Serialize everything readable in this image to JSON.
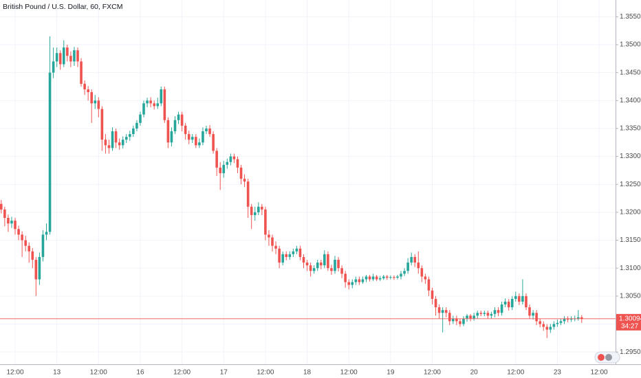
{
  "chart_data": {
    "type": "candlestick",
    "title": "British Pound / U.S. Dollar, 60, FXCM",
    "categories": [
      null,
      null,
      null,
      null,
      "12:00",
      null,
      null,
      null,
      null,
      null,
      null,
      null,
      null,
      null,
      null,
      null,
      "13",
      null,
      null,
      null,
      null,
      null,
      null,
      null,
      null,
      null,
      null,
      null,
      "12:00",
      null,
      null,
      null,
      null,
      null,
      null,
      null,
      null,
      null,
      null,
      null,
      "16",
      null,
      null,
      null,
      null,
      null,
      null,
      null,
      null,
      null,
      null,
      null,
      "12:00",
      null,
      null,
      null,
      null,
      null,
      null,
      null,
      null,
      null,
      null,
      null,
      "17",
      null,
      null,
      null,
      null,
      null,
      null,
      null,
      null,
      null,
      null,
      null,
      "12:00",
      null,
      null,
      null,
      null,
      null,
      null,
      null,
      null,
      null,
      null,
      null,
      "18",
      null,
      null,
      null,
      null,
      null,
      null,
      null,
      null,
      null,
      null,
      null,
      "12:00",
      null,
      null,
      null,
      null,
      null,
      null,
      null,
      null,
      null,
      null,
      null,
      "19",
      null,
      null,
      null,
      null,
      null,
      null,
      null,
      null,
      null,
      null,
      null,
      "12:00",
      null,
      null,
      null,
      null,
      null,
      null,
      null,
      null,
      null,
      null,
      null,
      "20",
      null,
      null,
      null,
      null,
      null,
      null,
      null,
      null,
      null,
      null,
      null,
      "12:00",
      null,
      null,
      null,
      null,
      null,
      null,
      null,
      null,
      null,
      null,
      null,
      "23",
      null,
      null,
      null,
      null,
      null,
      null,
      null,
      null,
      null,
      null,
      null,
      "12:00",
      null,
      null,
      null,
      null
    ],
    "open": [
      1.3215,
      1.3205,
      1.319,
      1.318,
      1.3185,
      1.317,
      1.316,
      1.315,
      1.314,
      1.313,
      1.3115,
      1.308,
      1.312,
      1.316,
      1.3165,
      1.345,
      1.347,
      1.3485,
      1.3465,
      1.3495,
      1.348,
      1.347,
      1.349,
      1.347,
      1.343,
      1.342,
      1.3415,
      1.3395,
      1.34,
      1.3385,
      1.333,
      1.332,
      1.3315,
      1.3345,
      1.3325,
      1.332,
      1.333,
      1.3335,
      1.334,
      1.335,
      1.336,
      1.3375,
      1.3395,
      1.34,
      1.3395,
      1.339,
      1.3395,
      1.342,
      1.3365,
      1.3325,
      1.3345,
      1.3365,
      1.3375,
      1.3355,
      1.334,
      1.333,
      1.3335,
      1.332,
      1.3325,
      1.3345,
      1.335,
      1.334,
      1.331,
      1.328,
      1.327,
      1.3285,
      1.329,
      1.33,
      1.3295,
      1.328,
      1.326,
      1.3255,
      1.321,
      1.3195,
      1.32,
      1.321,
      1.3205,
      1.316,
      1.3155,
      1.314,
      1.3135,
      1.311,
      1.3125,
      1.312,
      1.3125,
      1.313,
      1.3135,
      1.312,
      1.311,
      1.3105,
      1.3095,
      1.31,
      1.311,
      1.3105,
      1.3125,
      1.31,
      1.3095,
      1.3115,
      1.31,
      1.309,
      1.3075,
      1.307,
      1.3075,
      1.308,
      1.3075,
      1.308,
      1.3085,
      1.308,
      1.3085,
      1.308,
      1.3082,
      1.3085,
      1.3083,
      1.3084,
      1.3083,
      1.3085,
      1.309,
      1.3095,
      1.311,
      1.312,
      1.311,
      1.31,
      1.3085,
      1.308,
      1.306,
      1.3045,
      1.303,
      1.302,
      1.3025,
      1.302,
      1.3005,
      1.301,
      1.3005,
      1.3,
      1.301,
      1.3015,
      1.301,
      1.3015,
      1.302,
      1.3018,
      1.302,
      1.3015,
      1.3018,
      1.3025,
      1.302,
      1.3035,
      1.304,
      1.303,
      1.3045,
      1.305,
      1.304,
      1.305,
      1.303,
      1.3015,
      1.302,
      1.3005,
      1.3,
      1.2995,
      1.299,
      1.2995,
      1.3,
      1.3002,
      1.3005,
      1.301,
      1.3008,
      1.301,
      1.301,
      1.3012,
      null,
      null,
      null,
      null,
      null,
      null,
      null,
      null,
      null
    ],
    "high": [
      1.3222,
      1.321,
      1.3196,
      1.3192,
      1.319,
      1.3176,
      1.3166,
      1.3158,
      1.3146,
      1.3136,
      1.312,
      1.3128,
      1.3168,
      1.318,
      1.3515,
      1.3495,
      1.3495,
      1.349,
      1.3508,
      1.35,
      1.3488,
      1.3496,
      1.3495,
      1.3476,
      1.3436,
      1.3426,
      1.342,
      1.341,
      1.3406,
      1.339,
      1.334,
      1.333,
      1.3352,
      1.335,
      1.3332,
      1.3336,
      1.334,
      1.3346,
      1.3355,
      1.3365,
      1.338,
      1.34,
      1.3405,
      1.3406,
      1.34,
      1.3405,
      1.3425,
      1.3425,
      1.337,
      1.3352,
      1.3372,
      1.338,
      1.338,
      1.336,
      1.3346,
      1.334,
      1.334,
      1.3332,
      1.3352,
      1.3355,
      1.3356,
      1.3345,
      1.3315,
      1.329,
      1.3292,
      1.3296,
      1.3305,
      1.3305,
      1.33,
      1.3285,
      1.3268,
      1.326,
      1.3215,
      1.321,
      1.3218,
      1.3215,
      1.321,
      1.3168,
      1.316,
      1.3148,
      1.314,
      1.313,
      1.313,
      1.313,
      1.3135,
      1.314,
      1.314,
      1.3125,
      1.3115,
      1.311,
      1.3105,
      1.3115,
      1.3115,
      1.3132,
      1.313,
      1.3106,
      1.3122,
      1.312,
      1.3105,
      1.3095,
      1.308,
      1.308,
      1.3085,
      1.3085,
      1.3085,
      1.3088,
      1.3088,
      1.309,
      1.3088,
      1.3086,
      1.3088,
      1.3088,
      1.3087,
      1.3087,
      1.3088,
      1.3095,
      1.31,
      1.3118,
      1.3128,
      1.3125,
      1.313,
      1.3105,
      1.309,
      1.3085,
      1.3065,
      1.305,
      1.3035,
      1.303,
      1.303,
      1.3025,
      1.3015,
      1.3015,
      1.301,
      1.3014,
      1.3018,
      1.3018,
      1.302,
      1.3024,
      1.3024,
      1.3024,
      1.3024,
      1.3022,
      1.303,
      1.303,
      1.304,
      1.3046,
      1.3045,
      1.305,
      1.3058,
      1.3055,
      1.308,
      1.3055,
      1.3035,
      1.3025,
      1.3025,
      1.301,
      1.3005,
      1.3,
      1.3,
      1.3005,
      1.3008,
      1.301,
      1.3014,
      1.3014,
      1.3014,
      1.3015,
      1.3025,
      1.3016,
      null,
      null,
      null,
      null,
      null,
      null,
      null,
      null,
      null
    ],
    "low": [
      1.3198,
      1.3175,
      1.3165,
      1.3172,
      1.316,
      1.315,
      1.312,
      1.313,
      1.311,
      1.31,
      1.305,
      1.307,
      1.3112,
      1.315,
      1.316,
      1.344,
      1.346,
      1.3455,
      1.346,
      1.347,
      1.346,
      1.3462,
      1.346,
      1.3425,
      1.341,
      1.34,
      1.336,
      1.3385,
      1.337,
      1.331,
      1.3305,
      1.3305,
      1.331,
      1.3315,
      1.3312,
      1.3314,
      1.3324,
      1.3328,
      1.3335,
      1.3345,
      1.3355,
      1.337,
      1.3388,
      1.3388,
      1.3384,
      1.3385,
      1.339,
      1.336,
      1.3315,
      1.3318,
      1.334,
      1.3358,
      1.3345,
      1.333,
      1.3322,
      1.3324,
      1.3315,
      1.3315,
      1.332,
      1.334,
      1.3335,
      1.3305,
      1.3265,
      1.324,
      1.3262,
      1.3278,
      1.3284,
      1.3288,
      1.327,
      1.325,
      1.3245,
      1.319,
      1.317,
      1.3185,
      1.3195,
      1.3195,
      1.315,
      1.314,
      1.313,
      1.3125,
      1.31,
      1.3105,
      1.3114,
      1.3115,
      1.312,
      1.3125,
      1.3114,
      1.31,
      1.3095,
      1.3085,
      1.309,
      1.3095,
      1.3098,
      1.31,
      1.3095,
      1.3088,
      1.309,
      1.3094,
      1.3082,
      1.3065,
      1.3062,
      1.3064,
      1.307,
      1.307,
      1.3072,
      1.3075,
      1.3076,
      1.3077,
      1.3077,
      1.3077,
      1.3079,
      1.3079,
      1.308,
      1.3079,
      1.308,
      1.308,
      1.3086,
      1.309,
      1.3105,
      1.3102,
      1.309,
      1.3075,
      1.3072,
      1.305,
      1.3035,
      1.3015,
      1.301,
      1.2985,
      1.3012,
      1.2998,
      1.3,
      1.2998,
      1.2995,
      1.2996,
      1.3004,
      1.3005,
      1.3006,
      1.301,
      1.3014,
      1.3014,
      1.301,
      1.301,
      1.3012,
      1.3014,
      1.3015,
      1.303,
      1.3024,
      1.3025,
      1.304,
      1.3034,
      1.3035,
      1.3025,
      1.301,
      1.3008,
      1.2998,
      1.2994,
      1.2988,
      1.2975,
      1.2984,
      1.299,
      1.2995,
      1.2998,
      1.3,
      1.3003,
      1.3004,
      1.3005,
      1.3006,
      1.3002,
      null,
      null,
      null,
      null,
      null,
      null,
      null,
      null,
      null
    ],
    "close": [
      1.3205,
      1.319,
      1.318,
      1.3185,
      1.317,
      1.316,
      1.315,
      1.314,
      1.313,
      1.3115,
      1.308,
      1.312,
      1.316,
      1.3165,
      1.345,
      1.347,
      1.3485,
      1.3465,
      1.3495,
      1.348,
      1.347,
      1.349,
      1.347,
      1.343,
      1.342,
      1.3415,
      1.3395,
      1.34,
      1.3385,
      1.333,
      1.332,
      1.3315,
      1.3345,
      1.3325,
      1.332,
      1.333,
      1.3335,
      1.334,
      1.335,
      1.336,
      1.3375,
      1.3395,
      1.34,
      1.3395,
      1.339,
      1.3395,
      1.342,
      1.3365,
      1.3325,
      1.3345,
      1.3365,
      1.3375,
      1.3355,
      1.334,
      1.333,
      1.3335,
      1.332,
      1.3325,
      1.3345,
      1.335,
      1.334,
      1.331,
      1.328,
      1.327,
      1.3285,
      1.329,
      1.33,
      1.3295,
      1.328,
      1.326,
      1.3255,
      1.321,
      1.3195,
      1.32,
      1.321,
      1.3205,
      1.316,
      1.3155,
      1.314,
      1.3135,
      1.311,
      1.3125,
      1.312,
      1.3125,
      1.313,
      1.3135,
      1.312,
      1.311,
      1.3105,
      1.3095,
      1.31,
      1.311,
      1.3105,
      1.3125,
      1.31,
      1.3095,
      1.3115,
      1.31,
      1.309,
      1.3075,
      1.307,
      1.3075,
      1.308,
      1.3075,
      1.308,
      1.3085,
      1.308,
      1.3085,
      1.308,
      1.3082,
      1.3085,
      1.3083,
      1.3084,
      1.3083,
      1.3085,
      1.309,
      1.3095,
      1.311,
      1.312,
      1.311,
      1.31,
      1.3085,
      1.308,
      1.306,
      1.3045,
      1.303,
      1.302,
      1.3025,
      1.302,
      1.3005,
      1.301,
      1.3005,
      1.3,
      1.301,
      1.3015,
      1.301,
      1.3015,
      1.302,
      1.3018,
      1.302,
      1.3015,
      1.3018,
      1.3025,
      1.302,
      1.3035,
      1.304,
      1.303,
      1.3045,
      1.305,
      1.304,
      1.305,
      1.303,
      1.3015,
      1.302,
      1.3005,
      1.3,
      1.2995,
      1.299,
      1.2995,
      1.3,
      1.3002,
      1.3005,
      1.301,
      1.3008,
      1.301,
      1.301,
      1.3012,
      1.30094,
      null,
      null,
      null,
      null,
      null,
      null,
      null,
      null,
      null
    ],
    "up_color": "#26a69a",
    "down_color": "#ef5350",
    "ylim": [
      1.2928,
      1.358
    ],
    "yticks": [
      {
        "value": 1.295,
        "label": "1.29500"
      },
      {
        "value": 1.3,
        "label": "1.30000"
      },
      {
        "value": 1.305,
        "label": "1.30500"
      },
      {
        "value": 1.31,
        "label": "1.31000"
      },
      {
        "value": 1.315,
        "label": "1.31500"
      },
      {
        "value": 1.32,
        "label": "1.32000"
      },
      {
        "value": 1.325,
        "label": "1.32500"
      },
      {
        "value": 1.33,
        "label": "1.33000"
      },
      {
        "value": 1.335,
        "label": "1.33500"
      },
      {
        "value": 1.34,
        "label": "1.34000"
      },
      {
        "value": 1.345,
        "label": "1.34500"
      },
      {
        "value": 1.35,
        "label": "1.35000"
      },
      {
        "value": 1.355,
        "label": "1.35500"
      }
    ],
    "grid": true,
    "last_price": 1.30094,
    "countdown": "34:27"
  }
}
